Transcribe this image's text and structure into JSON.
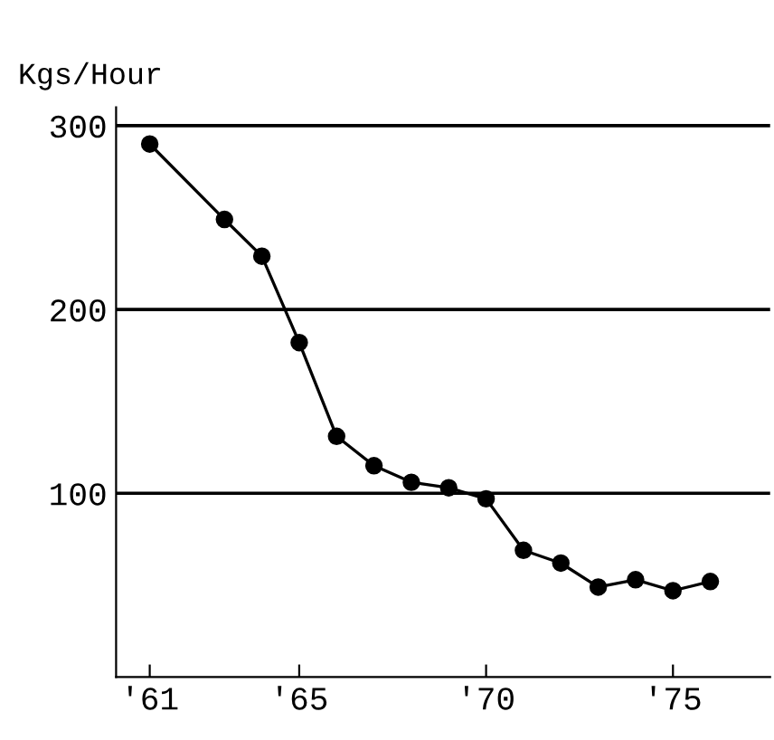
{
  "chart_data": {
    "type": "line",
    "ylabel": "Kgs/Hour",
    "x": [
      1961,
      1963,
      1964,
      1965,
      1966,
      1967,
      1968,
      1969,
      1970,
      1971,
      1972,
      1973,
      1974,
      1975,
      1976
    ],
    "series": [
      {
        "color": "#000000",
        "values": [
          290,
          249,
          229,
          182,
          131,
          115,
          106,
          103,
          97,
          69,
          62,
          49,
          53,
          47,
          52
        ]
      }
    ],
    "xlim": [
      1960.1,
      1977.6
    ],
    "ylim": [
      0,
      310
    ],
    "xticks": [
      {
        "value": 1961,
        "label": "'61"
      },
      {
        "value": 1965,
        "label": "'65"
      },
      {
        "value": 1970,
        "label": "'70"
      },
      {
        "value": 1975,
        "label": "'75"
      }
    ],
    "yticks": [
      100,
      200,
      300
    ],
    "grid": "y",
    "marker": "circle",
    "line_style": "solid"
  }
}
